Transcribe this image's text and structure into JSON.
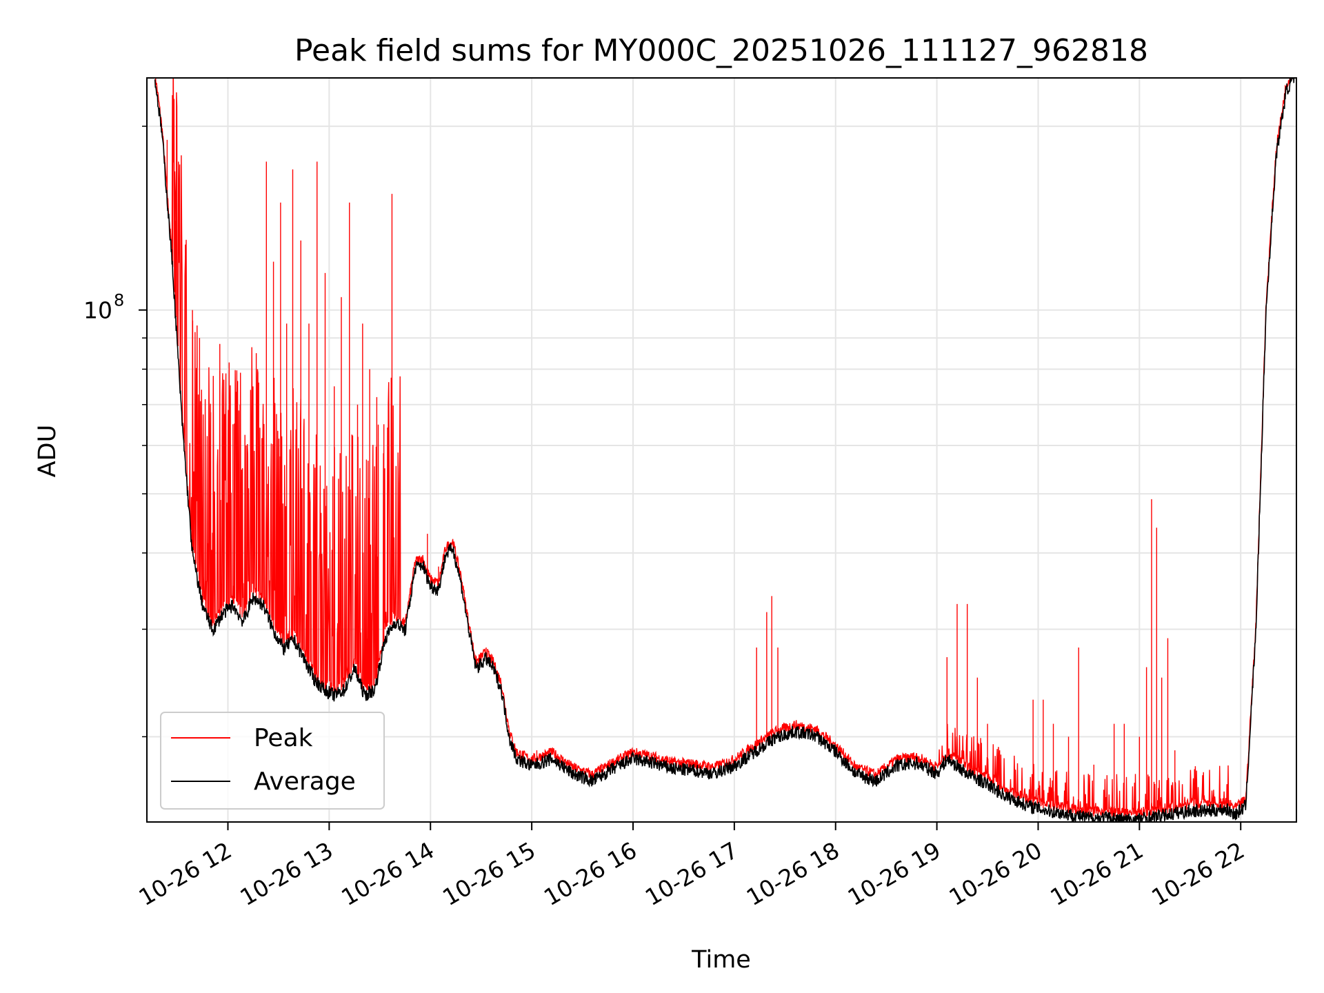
{
  "chart_data": {
    "type": "line",
    "title": "Peak field sums for MY000C_20251026_111127_962818",
    "xlabel": "Time",
    "ylabel": "ADU",
    "yscale": "log",
    "ylim": [
      14500000,
      240000000
    ],
    "xlim_hours": [
      11.2,
      22.55
    ],
    "grid": true,
    "legend_loc": "lower left",
    "x_ticks": [
      {
        "hour": 12,
        "label": "10-26 12"
      },
      {
        "hour": 13,
        "label": "10-26 13"
      },
      {
        "hour": 14,
        "label": "10-26 14"
      },
      {
        "hour": 15,
        "label": "10-26 15"
      },
      {
        "hour": 16,
        "label": "10-26 16"
      },
      {
        "hour": 17,
        "label": "10-26 17"
      },
      {
        "hour": 18,
        "label": "10-26 18"
      },
      {
        "hour": 19,
        "label": "10-26 19"
      },
      {
        "hour": 20,
        "label": "10-26 20"
      },
      {
        "hour": 21,
        "label": "10-26 21"
      },
      {
        "hour": 22,
        "label": "10-26 22"
      }
    ],
    "y_ticks": [
      {
        "value": 100000000,
        "base": "10",
        "exp": "8"
      }
    ],
    "y_minor_ticks": [
      20000000,
      30000000,
      40000000,
      50000000,
      60000000,
      70000000,
      80000000,
      90000000,
      200000000
    ],
    "series": [
      {
        "name": "Average",
        "color": "#000000",
        "hours": [
          11.28,
          11.35,
          11.45,
          11.55,
          11.65,
          11.75,
          11.85,
          11.95,
          12.05,
          12.15,
          12.25,
          12.35,
          12.45,
          12.55,
          12.65,
          12.75,
          12.85,
          12.95,
          13.05,
          13.15,
          13.25,
          13.35,
          13.45,
          13.55,
          13.65,
          13.75,
          13.85,
          13.92,
          14.0,
          14.08,
          14.15,
          14.22,
          14.3,
          14.38,
          14.45,
          14.55,
          14.62,
          14.7,
          14.78,
          14.85,
          15.0,
          15.2,
          15.4,
          15.6,
          15.8,
          16.0,
          16.2,
          16.4,
          16.6,
          16.8,
          17.0,
          17.2,
          17.4,
          17.6,
          17.8,
          18.0,
          18.2,
          18.4,
          18.6,
          18.8,
          19.0,
          19.1,
          19.3,
          19.5,
          19.7,
          19.9,
          20.1,
          20.3,
          20.5,
          20.7,
          20.9,
          21.1,
          21.3,
          21.5,
          21.7,
          21.85,
          21.95,
          22.05,
          22.15,
          22.25,
          22.35,
          22.45,
          22.55
        ],
        "values": [
          240000000,
          195000000,
          120000000,
          65000000,
          40000000,
          33000000,
          30000000,
          32000000,
          33000000,
          31000000,
          34000000,
          33000000,
          30000000,
          28000000,
          29000000,
          27000000,
          25000000,
          24000000,
          23500000,
          24000000,
          26000000,
          23500000,
          24000000,
          29000000,
          31000000,
          30000000,
          38000000,
          38500000,
          35500000,
          35000000,
          40000000,
          41000000,
          36000000,
          30000000,
          26000000,
          27000000,
          26000000,
          24000000,
          20000000,
          18500000,
          18000000,
          18500000,
          17500000,
          17000000,
          17800000,
          18500000,
          18200000,
          17800000,
          17700000,
          17500000,
          18000000,
          19000000,
          20000000,
          20500000,
          20200000,
          19000000,
          17500000,
          17000000,
          18000000,
          18200000,
          17500000,
          18500000,
          17500000,
          16800000,
          16000000,
          15500000,
          15200000,
          15000000,
          14800000,
          14800000,
          14700000,
          14800000,
          15000000,
          15200000,
          15200000,
          15300000,
          15000000,
          15500000,
          30000000,
          100000000,
          180000000,
          230000000,
          245000000
        ]
      },
      {
        "name": "Peak",
        "color": "#ff0000",
        "spikes": [
          {
            "hour": 11.4,
            "value": 190000000
          },
          {
            "hour": 11.48,
            "value": 140000000
          },
          {
            "hour": 11.58,
            "value": 128000000
          },
          {
            "hour": 11.65,
            "value": 100000000
          },
          {
            "hour": 11.72,
            "value": 90000000
          },
          {
            "hour": 11.83,
            "value": 68000000
          },
          {
            "hour": 11.92,
            "value": 88000000
          },
          {
            "hour": 12.05,
            "value": 65000000
          },
          {
            "hour": 12.12,
            "value": 70000000
          },
          {
            "hour": 12.18,
            "value": 60000000
          },
          {
            "hour": 12.28,
            "value": 85000000
          },
          {
            "hour": 12.38,
            "value": 175000000
          },
          {
            "hour": 12.45,
            "value": 120000000
          },
          {
            "hour": 12.52,
            "value": 150000000
          },
          {
            "hour": 12.58,
            "value": 95000000
          },
          {
            "hour": 12.64,
            "value": 170000000
          },
          {
            "hour": 12.72,
            "value": 130000000
          },
          {
            "hour": 12.8,
            "value": 95000000
          },
          {
            "hour": 12.88,
            "value": 175000000
          },
          {
            "hour": 12.96,
            "value": 115000000
          },
          {
            "hour": 13.05,
            "value": 75000000
          },
          {
            "hour": 13.12,
            "value": 105000000
          },
          {
            "hour": 13.2,
            "value": 150000000
          },
          {
            "hour": 13.28,
            "value": 70000000
          },
          {
            "hour": 13.33,
            "value": 95000000
          },
          {
            "hour": 13.4,
            "value": 80000000
          },
          {
            "hour": 13.47,
            "value": 72000000
          },
          {
            "hour": 13.54,
            "value": 65000000
          },
          {
            "hour": 13.62,
            "value": 155000000
          },
          {
            "hour": 13.97,
            "value": 43000000
          },
          {
            "hour": 14.08,
            "value": 38000000
          },
          {
            "hour": 14.55,
            "value": 28000000
          },
          {
            "hour": 15.05,
            "value": 19000000
          },
          {
            "hour": 17.22,
            "value": 28000000
          },
          {
            "hour": 17.32,
            "value": 32000000
          },
          {
            "hour": 17.37,
            "value": 34000000
          },
          {
            "hour": 17.43,
            "value": 28000000
          },
          {
            "hour": 17.5,
            "value": 21000000
          },
          {
            "hour": 19.1,
            "value": 27000000
          },
          {
            "hour": 19.2,
            "value": 33000000
          },
          {
            "hour": 19.3,
            "value": 33000000
          },
          {
            "hour": 19.4,
            "value": 25000000
          },
          {
            "hour": 19.5,
            "value": 21000000
          },
          {
            "hour": 19.62,
            "value": 19000000
          },
          {
            "hour": 19.95,
            "value": 23000000
          },
          {
            "hour": 20.05,
            "value": 23000000
          },
          {
            "hour": 20.15,
            "value": 21000000
          },
          {
            "hour": 20.3,
            "value": 20000000
          },
          {
            "hour": 20.4,
            "value": 28000000
          },
          {
            "hour": 20.55,
            "value": 18000000
          },
          {
            "hour": 20.75,
            "value": 21000000
          },
          {
            "hour": 20.85,
            "value": 21000000
          },
          {
            "hour": 21.0,
            "value": 20000000
          },
          {
            "hour": 21.07,
            "value": 26000000
          },
          {
            "hour": 21.12,
            "value": 49000000
          },
          {
            "hour": 21.17,
            "value": 44000000
          },
          {
            "hour": 21.22,
            "value": 25000000
          },
          {
            "hour": 21.28,
            "value": 29000000
          },
          {
            "hour": 21.35,
            "value": 19000000
          }
        ]
      }
    ]
  }
}
